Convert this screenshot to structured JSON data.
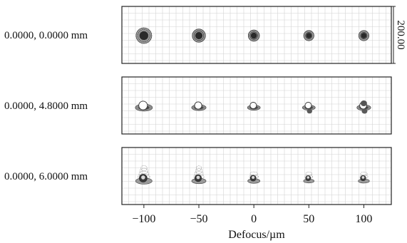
{
  "chart_data": {
    "type": "scatter",
    "title": "",
    "xlabel": "Defocus/µm",
    "ylabel": "",
    "x_ticks": [
      "−100",
      "−50",
      "0",
      "50",
      "100"
    ],
    "defocus_values": [
      -100,
      -50,
      0,
      50,
      100
    ],
    "scale_label": "200.00",
    "grid": true,
    "fields": [
      {
        "label": "0.0000, 0.0000 mm",
        "spots": [
          {
            "defocus": -100,
            "relative_size": 1.0
          },
          {
            "defocus": -50,
            "relative_size": 0.75
          },
          {
            "defocus": 0,
            "relative_size": 0.55
          },
          {
            "defocus": 50,
            "relative_size": 0.45
          },
          {
            "defocus": 100,
            "relative_size": 0.45
          }
        ]
      },
      {
        "label": "0.0000, 4.8000 mm",
        "spots": [
          {
            "defocus": -100,
            "relative_size": 1.0
          },
          {
            "defocus": -50,
            "relative_size": 0.75
          },
          {
            "defocus": 0,
            "relative_size": 0.6
          },
          {
            "defocus": 50,
            "relative_size": 0.6
          },
          {
            "defocus": 100,
            "relative_size": 0.7
          }
        ]
      },
      {
        "label": "0.0000, 6.0000 mm",
        "spots": [
          {
            "defocus": -100,
            "relative_size": 1.0
          },
          {
            "defocus": -50,
            "relative_size": 0.8
          },
          {
            "defocus": 0,
            "relative_size": 0.6
          },
          {
            "defocus": 50,
            "relative_size": 0.45
          },
          {
            "defocus": 100,
            "relative_size": 0.5
          }
        ]
      }
    ]
  }
}
